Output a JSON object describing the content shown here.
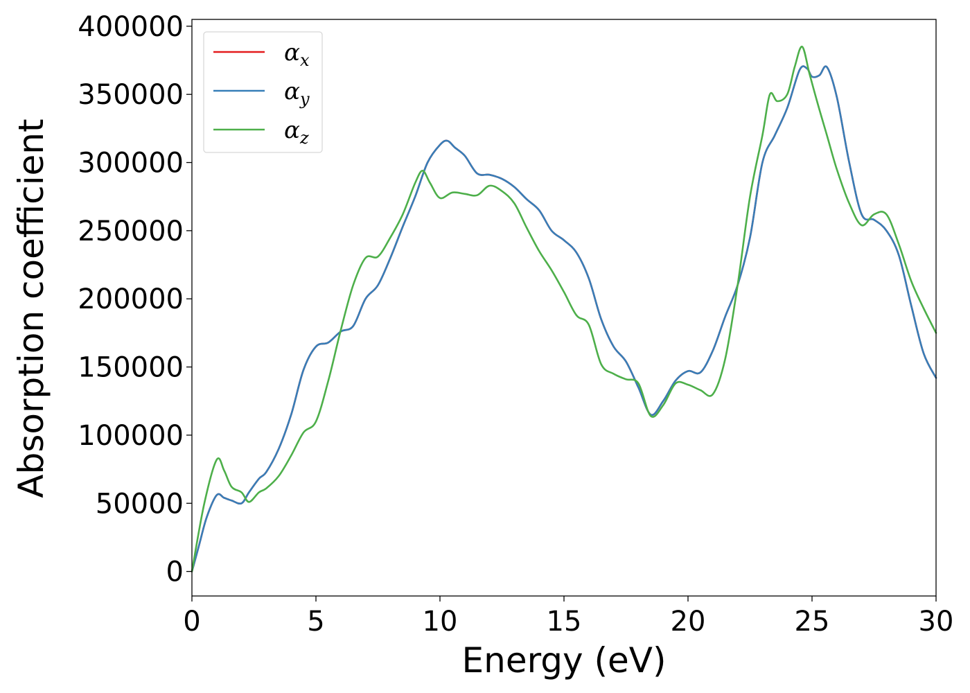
{
  "chart_data": {
    "type": "line",
    "xlabel": "Energy (eV)",
    "ylabel": "Absorption coefficient",
    "xlim": [
      0,
      30
    ],
    "ylim": [
      -18000,
      405000
    ],
    "xticks": [
      0,
      5,
      10,
      15,
      20,
      25,
      30
    ],
    "yticks": [
      0,
      50000,
      100000,
      150000,
      200000,
      250000,
      300000,
      350000,
      400000
    ],
    "grid": false,
    "legend_position": "top-left",
    "series": [
      {
        "name": "α_x",
        "legend_symbol": "α",
        "legend_subscript": "x",
        "color": "#e41a1c",
        "x": [
          0,
          0.3,
          0.6,
          1.0,
          1.3,
          1.6,
          2.0,
          2.3,
          2.7,
          3.0,
          3.5,
          4.0,
          4.5,
          5.0,
          5.5,
          6.0,
          6.5,
          7.0,
          7.5,
          8.0,
          8.5,
          9.0,
          9.5,
          10.0,
          10.3,
          10.6,
          11.0,
          11.5,
          12.0,
          12.5,
          13.0,
          13.5,
          14.0,
          14.5,
          15.0,
          15.5,
          16.0,
          16.5,
          17.0,
          17.5,
          18.0,
          18.5,
          19.0,
          19.5,
          20.0,
          20.5,
          21.0,
          21.5,
          22.0,
          22.5,
          23.0,
          23.5,
          24.0,
          24.5,
          24.8,
          25.0,
          25.3,
          25.6,
          26.0,
          26.5,
          27.0,
          27.5,
          28.0,
          28.5,
          29.0,
          29.5,
          30.0
        ],
        "y": [
          0,
          20000,
          40000,
          56000,
          54000,
          52000,
          50000,
          58000,
          68000,
          73000,
          90000,
          115000,
          148000,
          165000,
          168000,
          176000,
          180000,
          200000,
          210000,
          230000,
          253000,
          275000,
          300000,
          313000,
          316000,
          311000,
          305000,
          292000,
          291000,
          288000,
          282000,
          273000,
          265000,
          250000,
          243000,
          234000,
          215000,
          185000,
          165000,
          154000,
          135000,
          115000,
          125000,
          140000,
          147000,
          146000,
          162000,
          187000,
          210000,
          245000,
          300000,
          320000,
          340000,
          368000,
          369000,
          363000,
          364000,
          370000,
          348000,
          300000,
          262000,
          258000,
          250000,
          232000,
          195000,
          160000,
          142000
        ]
      },
      {
        "name": "α_y",
        "legend_symbol": "α",
        "legend_subscript": "y",
        "color": "#377eb8",
        "x": [
          0,
          0.3,
          0.6,
          1.0,
          1.3,
          1.6,
          2.0,
          2.3,
          2.7,
          3.0,
          3.5,
          4.0,
          4.5,
          5.0,
          5.5,
          6.0,
          6.5,
          7.0,
          7.5,
          8.0,
          8.5,
          9.0,
          9.5,
          10.0,
          10.3,
          10.6,
          11.0,
          11.5,
          12.0,
          12.5,
          13.0,
          13.5,
          14.0,
          14.5,
          15.0,
          15.5,
          16.0,
          16.5,
          17.0,
          17.5,
          18.0,
          18.5,
          19.0,
          19.5,
          20.0,
          20.5,
          21.0,
          21.5,
          22.0,
          22.5,
          23.0,
          23.5,
          24.0,
          24.5,
          24.8,
          25.0,
          25.3,
          25.6,
          26.0,
          26.5,
          27.0,
          27.5,
          28.0,
          28.5,
          29.0,
          29.5,
          30.0
        ],
        "y": [
          0,
          20000,
          40000,
          56000,
          54000,
          52000,
          50000,
          58000,
          68000,
          73000,
          90000,
          115000,
          148000,
          165000,
          168000,
          176000,
          180000,
          200000,
          210000,
          230000,
          253000,
          275000,
          300000,
          313000,
          316000,
          311000,
          305000,
          292000,
          291000,
          288000,
          282000,
          273000,
          265000,
          250000,
          243000,
          234000,
          215000,
          185000,
          165000,
          154000,
          135000,
          115000,
          125000,
          140000,
          147000,
          146000,
          162000,
          187000,
          210000,
          245000,
          300000,
          320000,
          340000,
          368000,
          369000,
          363000,
          364000,
          370000,
          348000,
          300000,
          262000,
          258000,
          250000,
          232000,
          195000,
          160000,
          142000
        ]
      },
      {
        "name": "α_z",
        "legend_symbol": "α",
        "legend_subscript": "z",
        "color": "#4daf4a",
        "x": [
          0,
          0.5,
          1.0,
          1.3,
          1.6,
          2.0,
          2.3,
          2.7,
          3.0,
          3.5,
          4.0,
          4.5,
          5.0,
          5.5,
          6.0,
          6.5,
          7.0,
          7.5,
          8.0,
          8.5,
          9.0,
          9.3,
          9.6,
          10.0,
          10.5,
          11.0,
          11.5,
          12.0,
          12.5,
          13.0,
          13.5,
          14.0,
          14.5,
          15.0,
          15.5,
          16.0,
          16.5,
          17.0,
          17.5,
          18.0,
          18.5,
          19.0,
          19.5,
          20.0,
          20.5,
          21.0,
          21.5,
          22.0,
          22.5,
          23.0,
          23.3,
          23.6,
          24.0,
          24.3,
          24.6,
          24.9,
          25.2,
          25.6,
          26.0,
          26.5,
          27.0,
          27.5,
          28.0,
          28.5,
          29.0,
          29.5,
          30.0
        ],
        "y": [
          0,
          50000,
          82000,
          74000,
          62000,
          58000,
          51000,
          58000,
          61000,
          70000,
          85000,
          102000,
          110000,
          140000,
          177000,
          210000,
          230000,
          231000,
          245000,
          262000,
          285000,
          294000,
          285000,
          274000,
          278000,
          277000,
          276000,
          283000,
          279000,
          270000,
          252000,
          235000,
          221000,
          205000,
          188000,
          181000,
          152000,
          145000,
          141000,
          138000,
          114000,
          122000,
          138000,
          137000,
          133000,
          130000,
          156000,
          210000,
          275000,
          320000,
          350000,
          345000,
          350000,
          370000,
          385000,
          365000,
          345000,
          320000,
          295000,
          270000,
          254000,
          262000,
          262000,
          240000,
          213000,
          193000,
          175000
        ]
      }
    ]
  }
}
